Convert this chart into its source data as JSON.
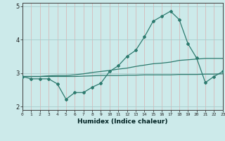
{
  "xlabel": "Humidex (Indice chaleur)",
  "bg_color": "#cceaea",
  "line_color": "#2d7a6e",
  "grid_color_v": "#d8b0b0",
  "grid_color_h": "#a8cccc",
  "xlim": [
    0,
    23
  ],
  "ylim": [
    1.9,
    5.1
  ],
  "yticks": [
    2,
    3,
    4,
    5
  ],
  "xticks": [
    0,
    1,
    2,
    3,
    4,
    5,
    6,
    7,
    8,
    9,
    10,
    11,
    12,
    13,
    14,
    15,
    16,
    17,
    18,
    19,
    20,
    21,
    22,
    23
  ],
  "series1_x": [
    0,
    1,
    2,
    3,
    4,
    5,
    6,
    7,
    8,
    9,
    10,
    11,
    12,
    13,
    14,
    15,
    16,
    17,
    18,
    19,
    20,
    21,
    22,
    23
  ],
  "series1_y": [
    2.9,
    2.83,
    2.83,
    2.83,
    2.68,
    2.22,
    2.42,
    2.42,
    2.58,
    2.7,
    3.05,
    3.22,
    3.5,
    3.68,
    4.08,
    4.55,
    4.7,
    4.85,
    4.6,
    3.88,
    3.45,
    2.72,
    2.9,
    3.05
  ],
  "series2_x": [
    0,
    1,
    2,
    3,
    4,
    5,
    6,
    7,
    8,
    9,
    10,
    11,
    12,
    13,
    14,
    15,
    16,
    17,
    18,
    19,
    20,
    21,
    22,
    23
  ],
  "series2_y": [
    2.9,
    2.9,
    2.9,
    2.9,
    2.9,
    2.9,
    2.9,
    2.91,
    2.92,
    2.93,
    2.93,
    2.93,
    2.94,
    2.94,
    2.95,
    2.95,
    2.95,
    2.95,
    2.96,
    2.96,
    2.96,
    2.97,
    2.97,
    2.98
  ],
  "series3_x": [
    0,
    1,
    2,
    3,
    4,
    5,
    6,
    7,
    8,
    9,
    10,
    11,
    12,
    13,
    14,
    15,
    16,
    17,
    18,
    19,
    20,
    21,
    22,
    23
  ],
  "series3_y": [
    2.9,
    2.9,
    2.9,
    2.92,
    2.93,
    2.93,
    2.95,
    2.98,
    3.02,
    3.05,
    3.08,
    3.12,
    3.15,
    3.2,
    3.24,
    3.28,
    3.3,
    3.33,
    3.38,
    3.4,
    3.42,
    3.44,
    3.44,
    3.44
  ]
}
